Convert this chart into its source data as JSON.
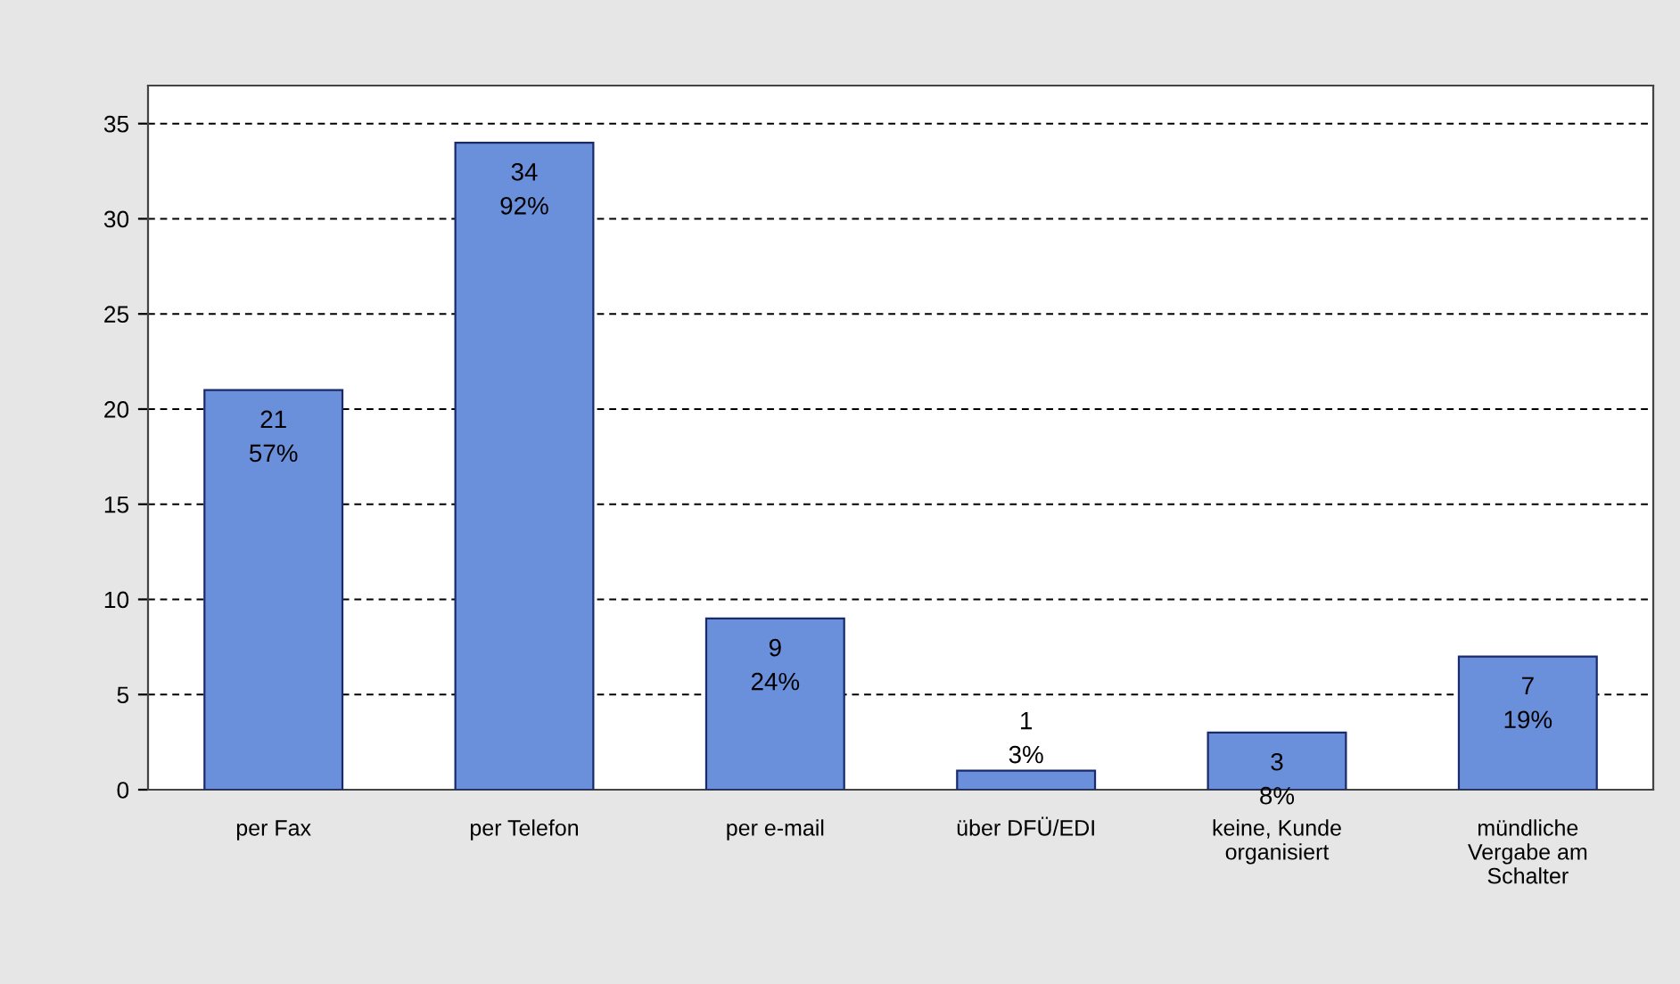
{
  "chart_data": {
    "type": "bar",
    "categories": [
      "per Fax",
      "per Telefon",
      "per e-mail",
      "über DFÜ/EDI",
      "keine, Kunde\norganisiert",
      "mündliche\nVergabe am\nSchalter"
    ],
    "values": [
      21,
      34,
      9,
      1,
      3,
      7
    ],
    "value_labels": [
      "21\n57%",
      "34\n92%",
      "9\n24%",
      "1\n3%",
      "3\n8%",
      "7\n19%"
    ],
    "color": "#6a8fdb",
    "ylim": [
      0,
      37
    ],
    "yticks": [
      0,
      5,
      10,
      15,
      20,
      25,
      30,
      35
    ],
    "grid": "y",
    "legend": false
  }
}
